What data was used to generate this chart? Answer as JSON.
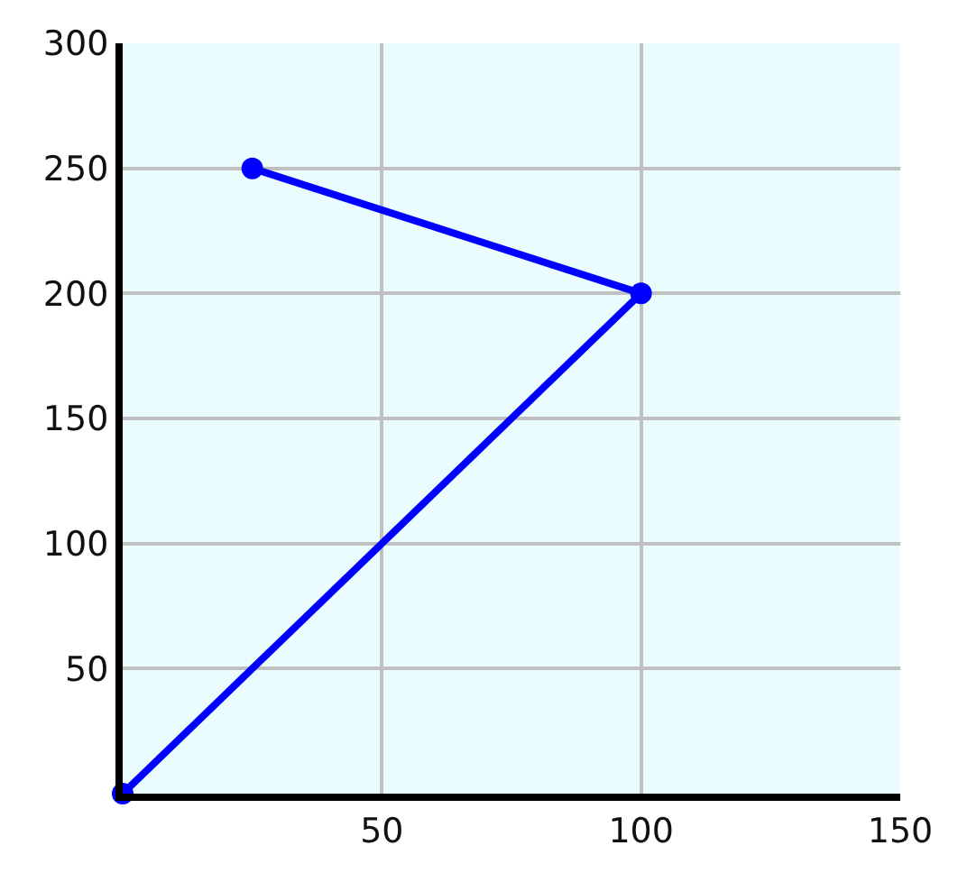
{
  "chart_data": {
    "type": "line",
    "x": [
      0,
      100,
      25
    ],
    "values": [
      0,
      200,
      250
    ],
    "color": "#0000ff",
    "xlim": [
      0,
      150
    ],
    "ylim": [
      0,
      300
    ],
    "xticks": [
      50,
      100,
      150
    ],
    "yticks": [
      50,
      100,
      150,
      200,
      250,
      300
    ],
    "grid": true,
    "marker": "circle",
    "line_style": "solid"
  }
}
